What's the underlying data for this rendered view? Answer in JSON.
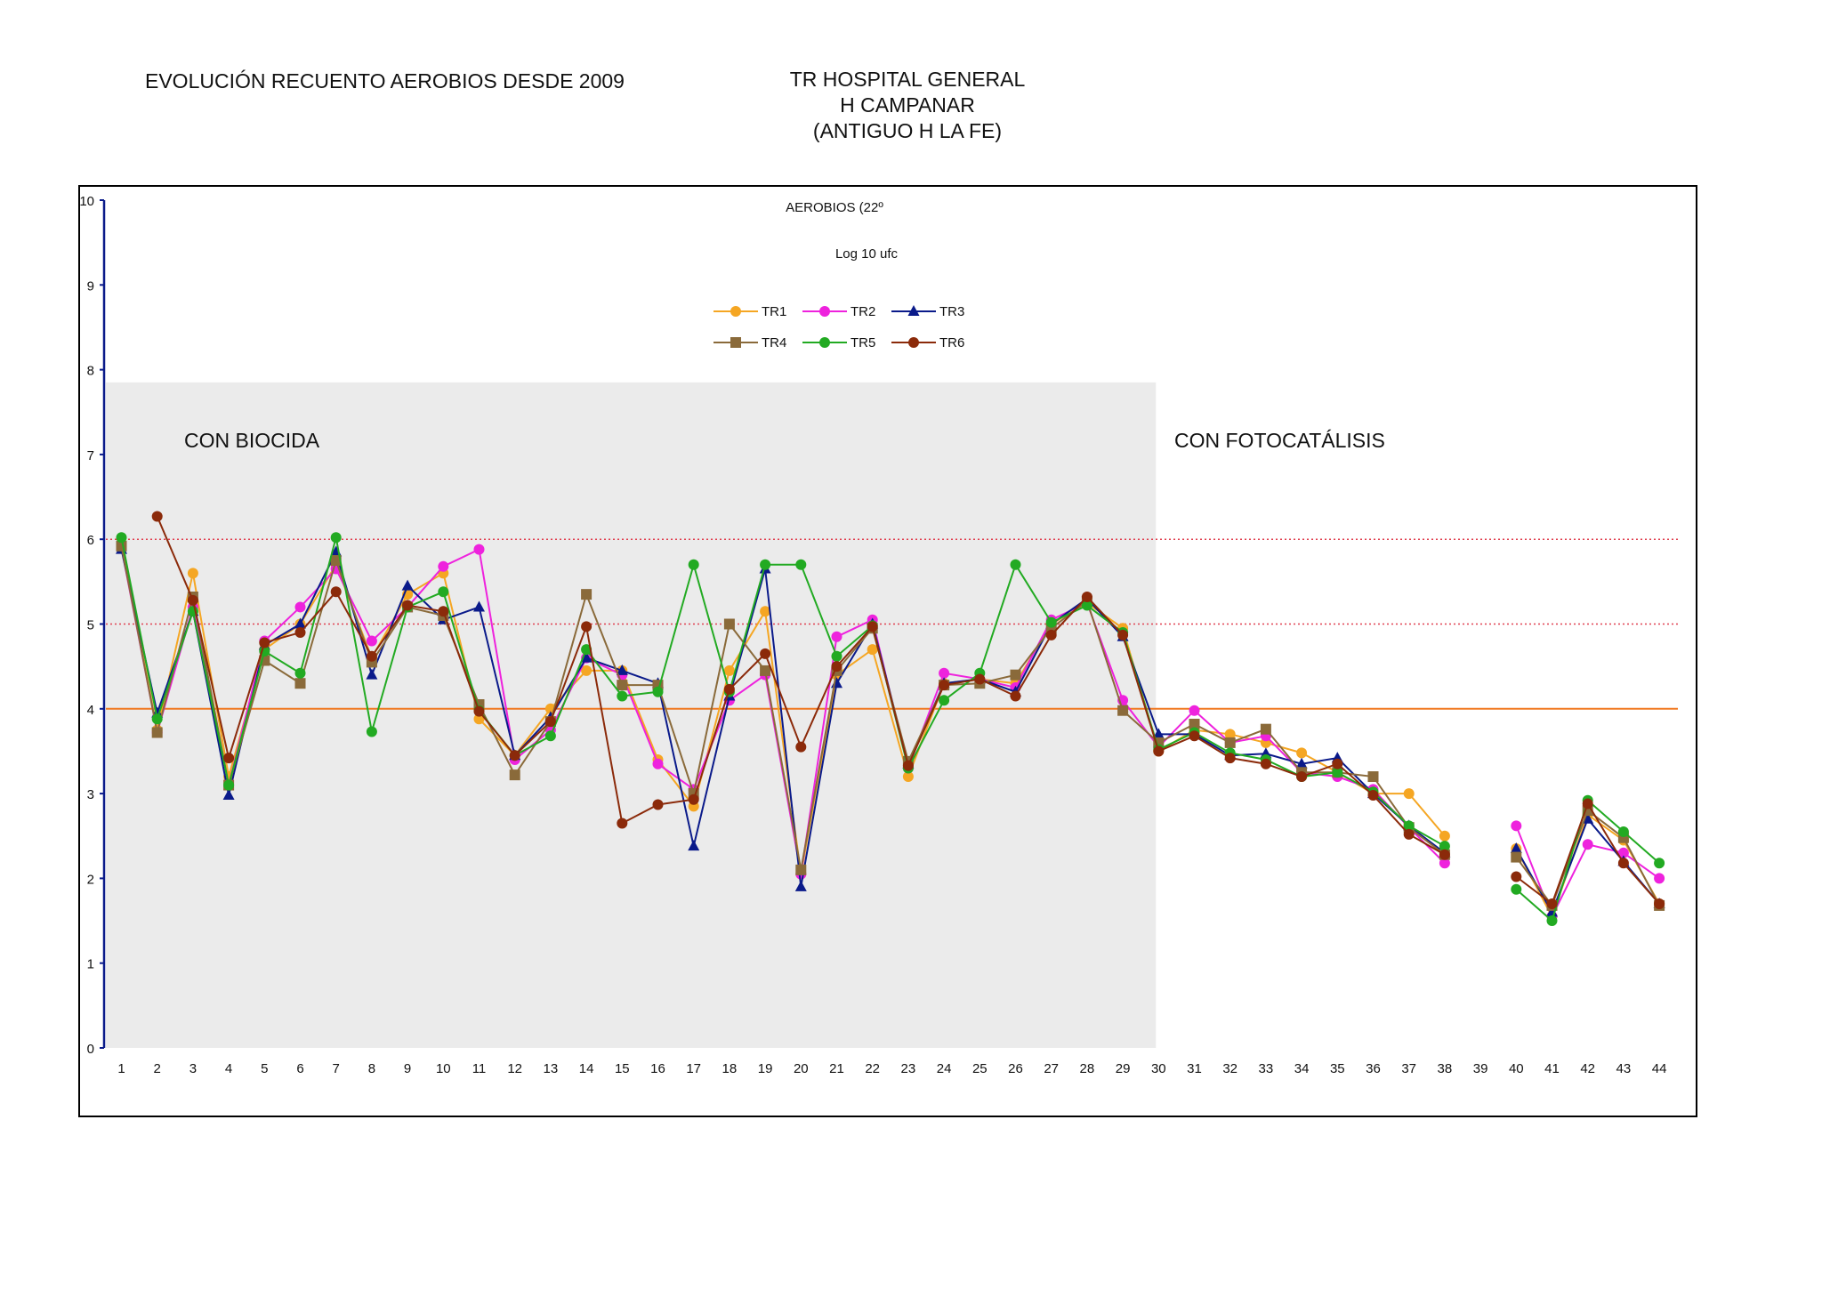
{
  "header": {
    "title_left": "EVOLUCIÓN RECUENTO AEROBIOS DESDE 2009",
    "title_right": [
      "TR HOSPITAL GENERAL",
      "H CAMPANAR",
      "(ANTIGUO H LA FE)"
    ]
  },
  "chart_data": {
    "type": "line",
    "title": "AEROBIOS (22º",
    "subtitle": "Log 10 ufc",
    "ylim": [
      0,
      10
    ],
    "yticks": [
      0,
      1,
      2,
      3,
      4,
      5,
      6,
      7,
      8,
      9,
      10
    ],
    "categories": [
      "1",
      "2",
      "3",
      "4",
      "5",
      "6",
      "7",
      "8",
      "9",
      "10",
      "11",
      "12",
      "13",
      "14",
      "15",
      "16",
      "17",
      "18",
      "19",
      "20",
      "21",
      "22",
      "23",
      "24",
      "25",
      "26",
      "27",
      "28",
      "29",
      "30",
      "31",
      "32",
      "33",
      "34",
      "35",
      "36",
      "37",
      "38",
      "39",
      "40",
      "41",
      "42",
      "43",
      "44"
    ],
    "grid": false,
    "legend_placement": "top-center",
    "regions": [
      {
        "label": "CON BIOCIDA",
        "from": 1,
        "to": 30,
        "color": "#ebebeb"
      },
      {
        "label": "CON FOTOCATÁLISIS",
        "from": 30,
        "to": 44
      }
    ],
    "reference_lines": [
      {
        "value": 6,
        "style": "dotted",
        "color": "#e04050"
      },
      {
        "value": 5,
        "style": "dotted",
        "color": "#e04050"
      },
      {
        "value": 4,
        "style": "solid",
        "color": "#f07820"
      }
    ],
    "series": [
      {
        "name": "TR1",
        "color": "#f5a623",
        "marker": "circle",
        "values": [
          5.95,
          3.75,
          5.6,
          3.2,
          4.7,
          5.0,
          5.7,
          4.6,
          5.35,
          5.6,
          3.88,
          3.45,
          4.0,
          4.45,
          4.45,
          3.4,
          2.85,
          4.45,
          5.15,
          2.05,
          4.4,
          4.7,
          3.2,
          4.3,
          4.35,
          4.3,
          5.0,
          5.25,
          4.95,
          3.5,
          3.75,
          3.7,
          3.6,
          3.48,
          3.25,
          3.0,
          3.0,
          2.5,
          null,
          2.35,
          1.55,
          2.75,
          2.45,
          1.7
        ]
      },
      {
        "name": "TR2",
        "color": "#ee22dd",
        "marker": "circle",
        "values": [
          5.9,
          3.72,
          5.2,
          3.1,
          4.8,
          5.2,
          5.65,
          4.8,
          5.2,
          5.68,
          5.88,
          3.4,
          3.75,
          4.6,
          4.4,
          3.35,
          3.05,
          4.1,
          4.4,
          2.05,
          4.85,
          5.05,
          3.3,
          4.42,
          4.35,
          4.25,
          5.05,
          5.25,
          4.1,
          3.55,
          3.98,
          3.6,
          3.68,
          3.25,
          3.2,
          3.05,
          2.6,
          2.18,
          null,
          2.62,
          1.55,
          2.4,
          2.3,
          2.0
        ]
      },
      {
        "name": "TR3",
        "color": "#0a1a8a",
        "marker": "triangle",
        "values": [
          5.88,
          3.95,
          5.15,
          2.98,
          4.75,
          5.0,
          5.85,
          4.4,
          5.45,
          5.05,
          5.2,
          3.45,
          3.9,
          4.6,
          4.45,
          4.3,
          2.38,
          4.15,
          5.65,
          1.9,
          4.3,
          5.0,
          3.35,
          4.3,
          4.35,
          4.2,
          5.0,
          5.3,
          4.85,
          3.7,
          3.7,
          3.45,
          3.47,
          3.35,
          3.42,
          3.0,
          2.62,
          2.3,
          null,
          2.35,
          1.6,
          2.7,
          2.2,
          1.7
        ]
      },
      {
        "name": "TR4",
        "color": "#8a6a3a",
        "marker": "square",
        "values": [
          5.92,
          3.72,
          5.32,
          3.1,
          4.57,
          4.3,
          5.75,
          4.55,
          5.2,
          5.1,
          4.05,
          3.22,
          3.85,
          5.35,
          4.28,
          4.28,
          3.0,
          5.0,
          4.45,
          2.1,
          4.45,
          4.95,
          3.38,
          4.28,
          4.3,
          4.4,
          4.95,
          5.27,
          3.98,
          3.6,
          3.82,
          3.6,
          3.76,
          3.25,
          3.25,
          3.2,
          2.6,
          2.28,
          null,
          2.25,
          1.68,
          2.8,
          2.48,
          1.68
        ]
      },
      {
        "name": "TR5",
        "color": "#22aa22",
        "marker": "circle",
        "values": [
          6.02,
          3.88,
          5.15,
          3.1,
          4.68,
          4.42,
          6.02,
          3.73,
          5.2,
          5.38,
          3.98,
          3.45,
          3.68,
          4.7,
          4.15,
          4.2,
          5.7,
          4.2,
          5.7,
          5.7,
          4.62,
          4.98,
          3.3,
          4.1,
          4.42,
          5.7,
          5.02,
          5.22,
          4.9,
          3.52,
          3.72,
          3.48,
          3.4,
          3.2,
          3.25,
          3.02,
          2.62,
          2.38,
          null,
          1.87,
          1.5,
          2.92,
          2.55,
          2.18
        ]
      },
      {
        "name": "TR6",
        "color": "#8b2a0a",
        "marker": "circle",
        "values": [
          null,
          6.27,
          5.28,
          3.42,
          4.78,
          4.9,
          5.38,
          4.62,
          5.22,
          5.15,
          3.97,
          3.45,
          3.85,
          4.97,
          2.65,
          2.87,
          2.93,
          4.23,
          4.65,
          3.55,
          4.5,
          4.97,
          3.33,
          4.28,
          4.35,
          4.15,
          4.87,
          5.32,
          4.87,
          3.5,
          3.68,
          3.42,
          3.35,
          3.2,
          3.35,
          2.98,
          2.52,
          2.28,
          null,
          2.02,
          1.7,
          2.88,
          2.18,
          1.7
        ]
      }
    ]
  }
}
